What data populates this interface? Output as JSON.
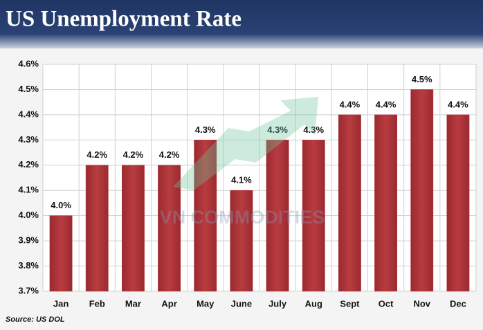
{
  "chart_data": {
    "type": "bar",
    "title": "US Unemployment Rate",
    "categories": [
      "Jan",
      "Feb",
      "Mar",
      "Apr",
      "May",
      "June",
      "July",
      "Aug",
      "Sept",
      "Oct",
      "Nov",
      "Dec"
    ],
    "values": [
      4.0,
      4.2,
      4.2,
      4.2,
      4.3,
      4.1,
      4.3,
      4.3,
      4.4,
      4.4,
      4.5,
      4.4
    ],
    "value_labels": [
      "4.0%",
      "4.2%",
      "4.2%",
      "4.2%",
      "4.3%",
      "4.1%",
      "4.3%",
      "4.3%",
      "4.4%",
      "4.4%",
      "4.5%",
      "4.4%"
    ],
    "color": "#b0353a",
    "ylim": [
      3.7,
      4.6
    ],
    "yticks": [
      {
        "value": 3.7,
        "label": "3.7%"
      },
      {
        "value": 3.8,
        "label": "3.8%"
      },
      {
        "value": 3.9,
        "label": "3.9%"
      },
      {
        "value": 4.0,
        "label": "4.0%"
      },
      {
        "value": 4.1,
        "label": "4.1%"
      },
      {
        "value": 4.2,
        "label": "4.2%"
      },
      {
        "value": 4.3,
        "label": "4.3%"
      },
      {
        "value": 4.4,
        "label": "4.4%"
      },
      {
        "value": 4.5,
        "label": "4.5%"
      },
      {
        "value": 4.6,
        "label": "4.6%"
      }
    ],
    "grid": true,
    "source": "Source: US DOL",
    "watermark": "VN COMMODITIES"
  }
}
